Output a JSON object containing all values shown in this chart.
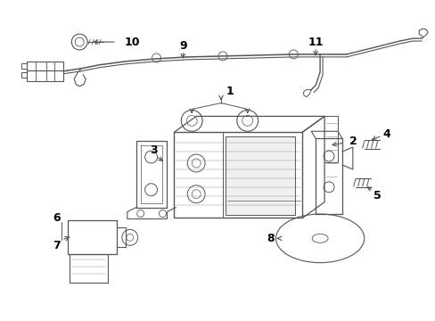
{
  "background_color": "#ffffff",
  "line_color": "#555555",
  "text_color": "#000000",
  "fig_width": 4.89,
  "fig_height": 3.6,
  "dpi": 100,
  "font_size": 9
}
